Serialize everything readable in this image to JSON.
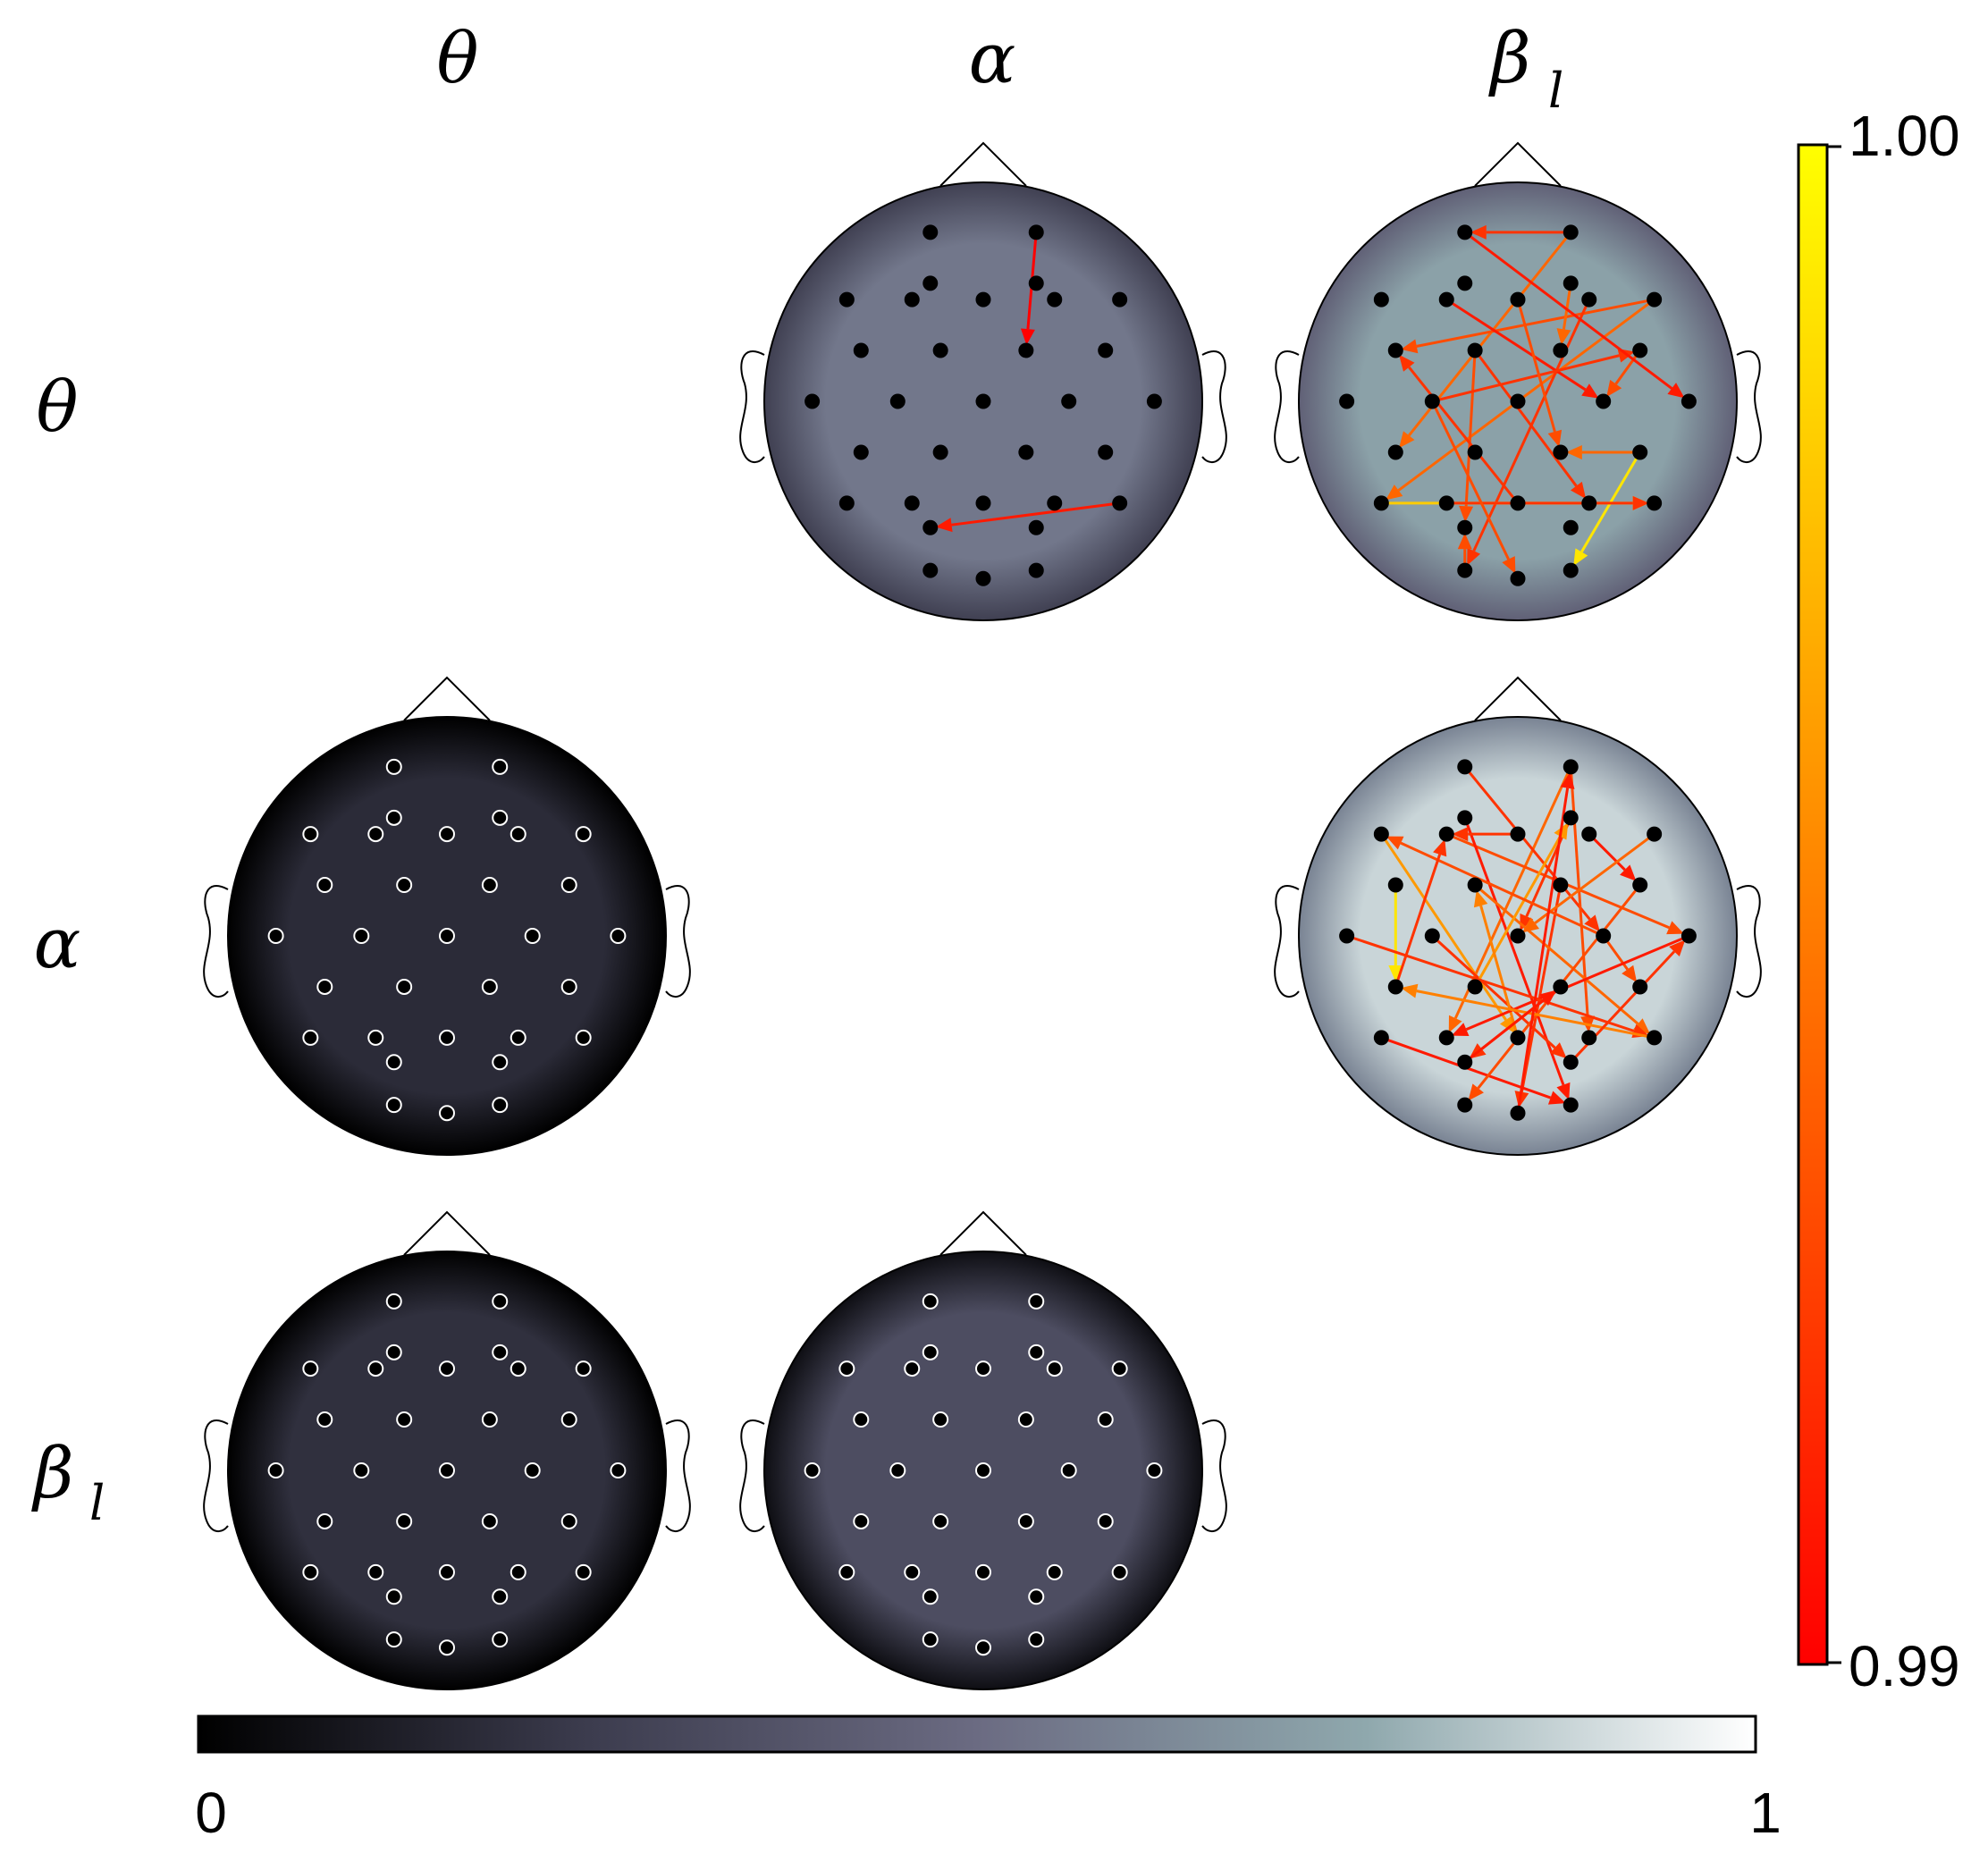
{
  "bands": [
    "θ",
    "α",
    "β"
  ],
  "band_subscripts": [
    "",
    "",
    "l"
  ],
  "colorbar_vertical": {
    "max_label": "1.00",
    "min_label": "0.99",
    "stops": [
      "#ff0000",
      "#ff5500",
      "#ffaa00",
      "#ffff00"
    ]
  },
  "colorbar_horizontal": {
    "min_label": "0",
    "max_label": "1",
    "stops": [
      "#000000",
      "#3c3c4e",
      "#6b6b82",
      "#8fa8ad",
      "#ffffff"
    ]
  },
  "chart_data": {
    "type": "heatmap",
    "description_rows": "source band",
    "description_cols": "target band",
    "electrodes": [
      [
        -0.26,
        -0.83
      ],
      [
        0.26,
        -0.83
      ],
      [
        -0.67,
        -0.5
      ],
      [
        -0.35,
        -0.5
      ],
      [
        0,
        -0.5
      ],
      [
        0.35,
        -0.5
      ],
      [
        0.67,
        -0.5
      ],
      [
        -0.26,
        -0.58
      ],
      [
        0.26,
        -0.58
      ],
      [
        -0.6,
        -0.25
      ],
      [
        -0.21,
        -0.25
      ],
      [
        0.21,
        -0.25
      ],
      [
        0.6,
        -0.25
      ],
      [
        -0.84,
        0
      ],
      [
        -0.42,
        0
      ],
      [
        0,
        0
      ],
      [
        0.42,
        0
      ],
      [
        0.84,
        0
      ],
      [
        -0.6,
        0.25
      ],
      [
        -0.21,
        0.25
      ],
      [
        0.21,
        0.25
      ],
      [
        0.6,
        0.25
      ],
      [
        -0.67,
        0.5
      ],
      [
        -0.35,
        0.5
      ],
      [
        0,
        0.5
      ],
      [
        0.35,
        0.5
      ],
      [
        0.67,
        0.5
      ],
      [
        -0.26,
        0.62
      ],
      [
        0.26,
        0.62
      ],
      [
        -0.26,
        0.83
      ],
      [
        0,
        0.87
      ],
      [
        0.26,
        0.83
      ]
    ],
    "panels": [
      {
        "row": 0,
        "col": 1,
        "scalp_level": 0.55,
        "edges": [
          [
            1,
            11,
            0.99
          ],
          [
            26,
            27,
            0.991
          ]
        ]
      },
      {
        "row": 0,
        "col": 2,
        "scalp_level": 0.72,
        "edges": [
          [
            1,
            0,
            0.992
          ],
          [
            1,
            18,
            0.994
          ],
          [
            6,
            22,
            0.994
          ],
          [
            6,
            9,
            0.993
          ],
          [
            8,
            11,
            0.994
          ],
          [
            12,
            16,
            0.993
          ],
          [
            5,
            29,
            0.992
          ],
          [
            3,
            16,
            0.991
          ],
          [
            10,
            27,
            0.993
          ],
          [
            10,
            25,
            0.992
          ],
          [
            14,
            12,
            0.992
          ],
          [
            22,
            26,
            0.998
          ],
          [
            21,
            31,
            0.999
          ],
          [
            4,
            20,
            0.993
          ],
          [
            23,
            26,
            0.992
          ],
          [
            24,
            9,
            0.992
          ],
          [
            29,
            27,
            0.993
          ],
          [
            0,
            17,
            0.991
          ],
          [
            21,
            20,
            0.994
          ],
          [
            14,
            30,
            0.993
          ]
        ]
      },
      {
        "row": 1,
        "col": 0,
        "scalp_level": 0.18,
        "edges": []
      },
      {
        "row": 1,
        "col": 2,
        "scalp_level": 0.88,
        "edges": [
          [
            1,
            23,
            0.994
          ],
          [
            2,
            24,
            0.996
          ],
          [
            9,
            18,
            0.999
          ],
          [
            0,
            16,
            0.992
          ],
          [
            1,
            25,
            0.993
          ],
          [
            5,
            12,
            0.991
          ],
          [
            3,
            17,
            0.993
          ],
          [
            11,
            30,
            0.992
          ],
          [
            7,
            31,
            0.991
          ],
          [
            8,
            15,
            0.992
          ],
          [
            10,
            26,
            0.994
          ],
          [
            14,
            28,
            0.992
          ],
          [
            16,
            21,
            0.993
          ],
          [
            19,
            8,
            0.996
          ],
          [
            20,
            27,
            0.992
          ],
          [
            22,
            31,
            0.991
          ],
          [
            12,
            29,
            0.993
          ],
          [
            6,
            15,
            0.994
          ],
          [
            4,
            3,
            0.992
          ],
          [
            24,
            10,
            0.995
          ],
          [
            17,
            23,
            0.991
          ],
          [
            13,
            26,
            0.992
          ],
          [
            26,
            18,
            0.995
          ],
          [
            27,
            20,
            0.991
          ],
          [
            16,
            2,
            0.993
          ],
          [
            18,
            3,
            0.992
          ],
          [
            30,
            1,
            0.991
          ],
          [
            28,
            17,
            0.992
          ]
        ]
      },
      {
        "row": 2,
        "col": 0,
        "scalp_level": 0.2,
        "edges": []
      },
      {
        "row": 2,
        "col": 1,
        "scalp_level": 0.34,
        "edges": []
      }
    ]
  }
}
